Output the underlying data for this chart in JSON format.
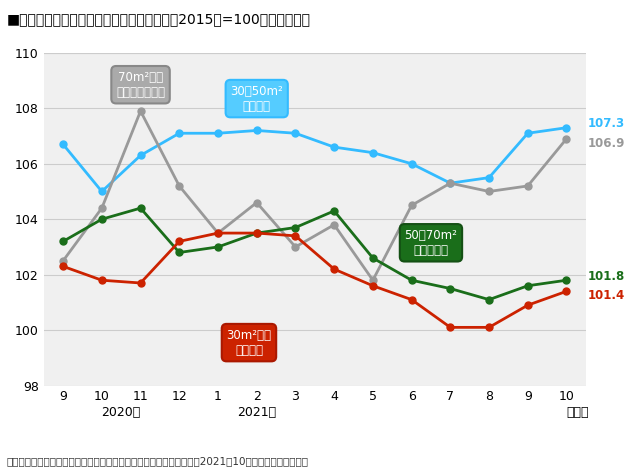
{
  "title": "■大阪市－マンション平均家賃指数の推移（2015年=100としたもの）",
  "footnote": "出典：全国主要都市の「賃貸マンション・アパート」募集家賃動向（2021年10月）アットホーム調べ",
  "x_labels": [
    "9",
    "10",
    "11",
    "12",
    "1",
    "2",
    "3",
    "4",
    "5",
    "6",
    "7",
    "8",
    "9",
    "10"
  ],
  "ylim": [
    98,
    110
  ],
  "yticks": [
    98,
    100,
    102,
    104,
    106,
    108,
    110
  ],
  "series": {
    "couple": {
      "color": "#33bbff",
      "values": [
        106.7,
        105.0,
        106.3,
        107.1,
        107.1,
        107.2,
        107.1,
        106.6,
        106.4,
        106.0,
        105.3,
        105.5,
        107.1,
        107.3
      ],
      "end_value": "107.3"
    },
    "large_family": {
      "color": "#999999",
      "values": [
        102.5,
        104.4,
        107.9,
        105.2,
        103.5,
        104.6,
        103.0,
        103.8,
        101.8,
        104.5,
        105.3,
        105.0,
        105.2,
        106.9
      ],
      "end_value": "106.9"
    },
    "family": {
      "color": "#1a6e1a",
      "values": [
        103.2,
        104.0,
        104.4,
        102.8,
        103.0,
        103.5,
        103.7,
        104.3,
        102.6,
        101.8,
        101.5,
        101.1,
        101.6,
        101.8
      ],
      "end_value": "101.8"
    },
    "single": {
      "color": "#cc2200",
      "values": [
        102.3,
        101.8,
        101.7,
        103.2,
        103.5,
        103.5,
        103.4,
        102.2,
        101.6,
        101.1,
        100.1,
        100.1,
        100.9,
        101.4
      ],
      "end_value": "101.4"
    }
  },
  "bubbles": [
    {
      "text": "30〜50m²\nカップル",
      "xi": 5.0,
      "yi": 108.35,
      "facecolor": "#55ccff",
      "edgecolor": "#33bbff"
    },
    {
      "text": "70m²以上\n大型ファミリー",
      "xi": 2.0,
      "yi": 108.85,
      "facecolor": "#aaaaaa",
      "edgecolor": "#888888"
    },
    {
      "text": "50〜70m²\nファミリー",
      "xi": 9.5,
      "yi": 103.15,
      "facecolor": "#1a6e1a",
      "edgecolor": "#145014"
    },
    {
      "text": "30m²未満\nシングル",
      "xi": 4.8,
      "yi": 99.55,
      "facecolor": "#cc2200",
      "edgecolor": "#aa1800"
    }
  ],
  "bg_color": "#ffffff",
  "plot_bg_color": "#f0f0f0",
  "grid_color": "#cccccc",
  "marker_size": 5,
  "linewidth": 2.0
}
